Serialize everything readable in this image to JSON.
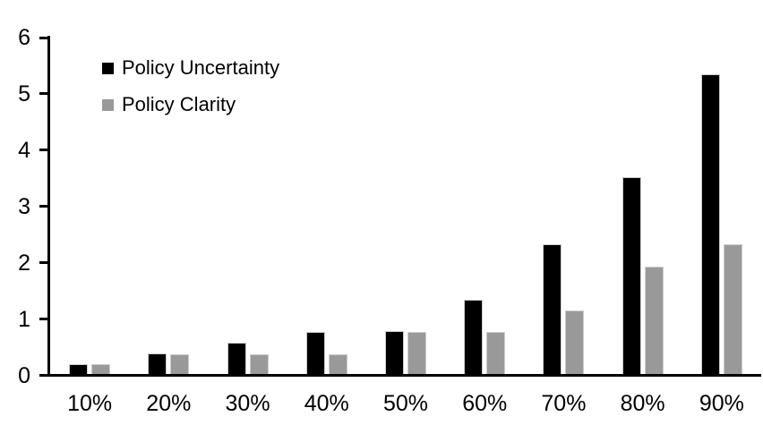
{
  "chart_data": {
    "type": "bar",
    "title": "",
    "xlabel": "",
    "ylabel": "",
    "categories": [
      "10%",
      "20%",
      "30%",
      "40%",
      "50%",
      "60%",
      "70%",
      "80%",
      "90%"
    ],
    "series": [
      {
        "name": "Policy Uncertainty",
        "color": "#000000",
        "values": [
          0.18,
          0.36,
          0.55,
          0.75,
          0.77,
          1.32,
          2.3,
          3.5,
          5.33
        ]
      },
      {
        "name": "Policy Clarity",
        "color": "#999999",
        "values": [
          0.18,
          0.35,
          0.35,
          0.35,
          0.75,
          0.75,
          1.13,
          1.9,
          2.3
        ]
      }
    ],
    "ylim": [
      0,
      6
    ],
    "yticks": [
      0,
      1,
      2,
      3,
      4,
      5,
      6
    ],
    "grid": false,
    "legend_position": "upper-left-inside",
    "axis_color": "#000000",
    "bar_border_color": "#cccccc",
    "background_color": "#ffffff"
  }
}
